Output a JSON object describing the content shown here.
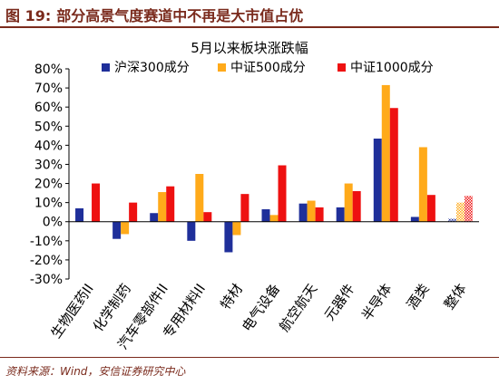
{
  "figure": {
    "label": "图 19:",
    "title": "部分高景气度赛道中不再是大市值占优"
  },
  "source": "资料来源：Wind，安信证券研究中心",
  "colors": {
    "header": "#7a2a1c",
    "series": [
      "#1f2f9a",
      "#ffaa1a",
      "#ee1111"
    ]
  },
  "chart_data": {
    "type": "bar",
    "title": "5月以来板块涨跌幅",
    "xlabel": "",
    "ylabel": "",
    "ylim": [
      -30,
      80
    ],
    "yticks": [
      "-30%",
      "-20%",
      "-10%",
      "0%",
      "10%",
      "20%",
      "30%",
      "40%",
      "50%",
      "60%",
      "70%",
      "80%"
    ],
    "ytick_values": [
      -30,
      -20,
      -10,
      0,
      10,
      20,
      30,
      40,
      50,
      60,
      70,
      80
    ],
    "grid": false,
    "legend": "top",
    "categories": [
      "生物医药II",
      "化学制药",
      "汽车零部件II",
      "专用材料II",
      "特材",
      "电气设备",
      "航空航天",
      "元器件",
      "半导体",
      "酒类",
      "整体"
    ],
    "series": [
      {
        "name": "沪深300成分",
        "values": [
          7,
          -9,
          4.5,
          -10,
          -16,
          6.5,
          9.5,
          7.5,
          43.5,
          2.5,
          1.5
        ]
      },
      {
        "name": "中证500成分",
        "values": [
          0,
          -6.5,
          15.5,
          25,
          -7,
          3.5,
          11,
          20,
          71.5,
          39,
          10
        ]
      },
      {
        "name": "中证1000成分",
        "values": [
          20,
          10,
          18.5,
          5,
          14.5,
          29.5,
          7.5,
          16,
          59.5,
          14,
          13.5
        ]
      }
    ],
    "hatched_categories": [
      "整体"
    ]
  }
}
